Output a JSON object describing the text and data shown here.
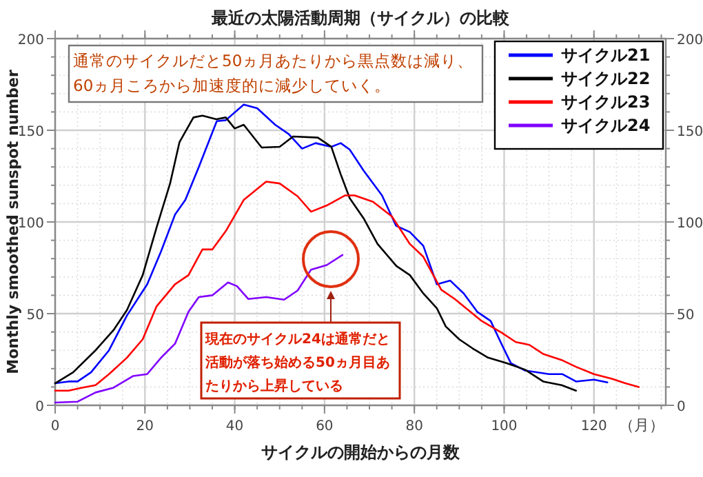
{
  "chart_data": {
    "type": "line",
    "title": "最近の太陽活動周期（サイクル）の比較",
    "xlabel": "サイクルの開始からの月数",
    "ylabel": "Monthly smoothed sunspot number",
    "xlim": [
      0,
      136
    ],
    "xticks": [
      0,
      20,
      40,
      60,
      80,
      100,
      120
    ],
    "ylim": [
      0,
      200
    ],
    "yticks": [
      0,
      50,
      100,
      150,
      200
    ],
    "y2lim": [
      0,
      200
    ],
    "y2ticks": [
      0,
      50,
      100,
      150,
      200
    ],
    "grid": true,
    "legend": "top right",
    "line_style": "solid",
    "marker": "none",
    "annotations": [
      "通常のサイクルだと50ヵ月あたりから黒点数は減り、60ヵ月ころから加速度的に減少していく。",
      "現在のサイクル24は通常だと活動が落ち始める50ヵ月目あたりから上昇している",
      "（月）"
    ],
    "series": [
      {
        "name": "サイクル21",
        "color": "#0000ff",
        "x": [
          0,
          3,
          5,
          8,
          12,
          16,
          20.5,
          23.6,
          26.7,
          29,
          32,
          36,
          38,
          42,
          45,
          49,
          52,
          55,
          58,
          61.5,
          63.6,
          65.6,
          68.7,
          72.8,
          75.9,
          79,
          82,
          85,
          88,
          91,
          94,
          97,
          99.5,
          101.5,
          104.6,
          110,
          113,
          116,
          120,
          123
        ],
        "values": [
          12,
          13,
          13,
          18,
          30,
          49,
          66,
          84,
          104,
          112,
          130,
          155,
          155.5,
          164,
          162,
          153,
          148,
          140,
          143,
          141,
          143,
          139.5,
          128,
          114.5,
          98,
          94.5,
          87,
          66,
          68,
          61,
          51,
          46,
          33,
          23,
          19,
          17,
          17,
          13,
          14,
          12.5
        ]
      },
      {
        "name": "サイクル22",
        "color": "#000000",
        "x": [
          0,
          4,
          9,
          13,
          16,
          19.5,
          22.6,
          25.6,
          27.7,
          30.8,
          32.8,
          35.9,
          38,
          40,
          42,
          46,
          50,
          53,
          58.5,
          61.5,
          63.6,
          65.6,
          68.7,
          71.8,
          76,
          79,
          82,
          85,
          87,
          90,
          93,
          96.4,
          100.5,
          104.6,
          108.7,
          112.8,
          116
        ],
        "values": [
          12,
          18,
          30,
          41,
          52,
          71,
          97,
          121,
          143.6,
          157,
          158,
          156,
          157,
          151,
          153,
          140.6,
          141,
          146.6,
          146,
          141,
          126,
          113,
          102,
          88,
          76,
          71,
          61,
          53,
          43,
          36,
          31,
          26,
          23,
          19.5,
          13,
          11,
          8
        ]
      },
      {
        "name": "サイクル23",
        "color": "#ff0000",
        "x": [
          0,
          3,
          6,
          9,
          12,
          16,
          19.5,
          22.6,
          26.7,
          29.7,
          32.8,
          35,
          38,
          42,
          47,
          50,
          54,
          57,
          60.5,
          64.6,
          66.7,
          70.8,
          75,
          79,
          82,
          86,
          89,
          92,
          95,
          99.5,
          102.6,
          105.6,
          108.7,
          113,
          116,
          120,
          124,
          127,
          130
        ],
        "values": [
          8,
          8,
          9.6,
          11,
          17,
          26,
          36,
          54,
          66,
          71,
          85,
          85,
          95,
          112,
          122,
          121,
          114,
          105.6,
          109,
          114.5,
          114.5,
          111,
          103,
          88,
          81,
          63,
          58,
          52,
          46,
          39.5,
          34.5,
          33,
          28,
          24.5,
          21,
          17,
          14.5,
          12,
          10
        ]
      },
      {
        "name": "サイクル24",
        "color": "#8000ff",
        "x": [
          0,
          5,
          9,
          13,
          17.4,
          20.5,
          23.6,
          26.7,
          29.7,
          32,
          35,
          38.5,
          40.5,
          43,
          47,
          51,
          54,
          57,
          60.5,
          64
        ],
        "values": [
          1.5,
          2,
          7,
          9.6,
          16,
          17,
          26,
          33.6,
          51,
          59,
          60,
          67,
          65,
          58,
          59,
          57.6,
          62.6,
          74,
          76.5,
          82
        ]
      }
    ]
  }
}
